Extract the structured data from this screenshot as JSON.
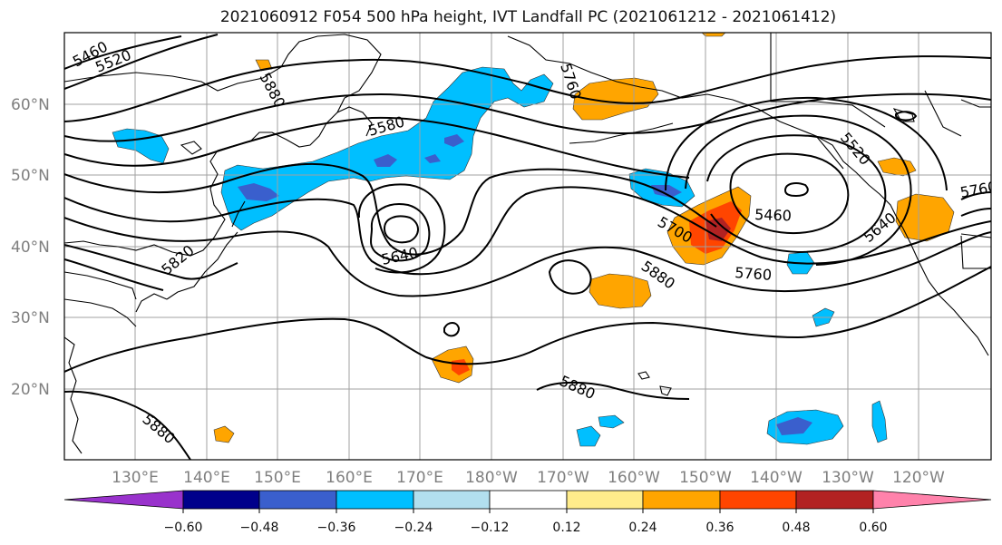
{
  "title": "2021060912 F054 500 hPa height, IVT Landfall PC (2021061212 - 2021061412)",
  "colors": {
    "neg_060": "#9932cc",
    "neg_048": "#00008b",
    "neg_036": "#3a5fcd",
    "neg_024": "#00bfff",
    "neg_012": "#b2dfee",
    "neutral": "#ffffff",
    "pos_012": "#ffec8b",
    "pos_024": "#ffa500",
    "pos_036": "#ff4500",
    "pos_048": "#b22222",
    "pos_060": "#ff82ab",
    "contour": "#000000",
    "grid": "#a0a0a0",
    "axis_text": "#7f7f7f"
  },
  "lat_labels": [
    "60°N",
    "50°N",
    "40°N",
    "30°N",
    "20°N"
  ],
  "lon_labels": [
    "130°E",
    "140°E",
    "150°E",
    "160°E",
    "170°E",
    "180°W",
    "170°W",
    "160°W",
    "150°W",
    "140°W",
    "130°W",
    "120°W"
  ],
  "colorbar": {
    "ticks": [
      "−0.60",
      "−0.48",
      "−0.36",
      "−0.24",
      "−0.12",
      "0.12",
      "0.24",
      "0.36",
      "0.48",
      "0.60"
    ]
  },
  "contour_labels": [
    "5460",
    "5520",
    "5580",
    "5640",
    "5820",
    "5880",
    "5880",
    "5880",
    "5880",
    "5760",
    "5700",
    "5460",
    "5640",
    "5760",
    "5520",
    "5760"
  ]
}
